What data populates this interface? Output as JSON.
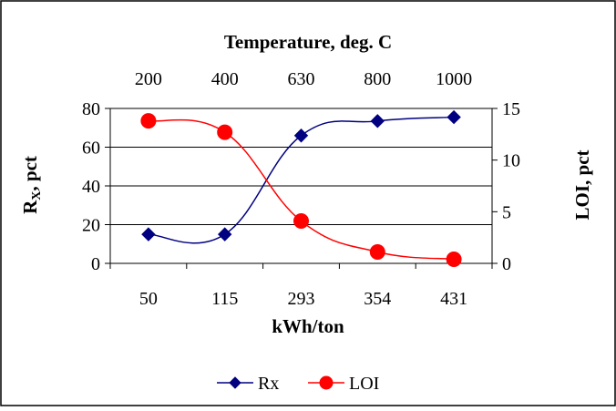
{
  "chart_data": {
    "type": "line",
    "top_axis": {
      "title": "Temperature, deg. C",
      "ticks": [
        "200",
        "400",
        "630",
        "800",
        "1000"
      ]
    },
    "x_axis": {
      "title": "kWh/ton",
      "ticks": [
        "50",
        "115",
        "293",
        "354",
        "431"
      ]
    },
    "y_left": {
      "title_main": "R",
      "title_sub": "X",
      "title_rest": ", pct",
      "range": [
        0,
        80
      ],
      "ticks": [
        "0",
        "20",
        "40",
        "60",
        "80"
      ]
    },
    "y_right": {
      "title": "LOI, pct",
      "range": [
        0,
        15
      ],
      "ticks": [
        "0",
        "5",
        "10",
        "15"
      ]
    },
    "grid": true,
    "legend_position": "bottom",
    "series": [
      {
        "name": "Rx",
        "axis": "left",
        "color": "#000080",
        "marker": "diamond",
        "values": [
          15,
          15,
          66,
          73.5,
          75.5
        ]
      },
      {
        "name": "LOI",
        "axis": "right",
        "color": "#ff0000",
        "marker": "circle",
        "values": [
          13.8,
          12.7,
          4.1,
          1.1,
          0.4
        ]
      }
    ]
  }
}
